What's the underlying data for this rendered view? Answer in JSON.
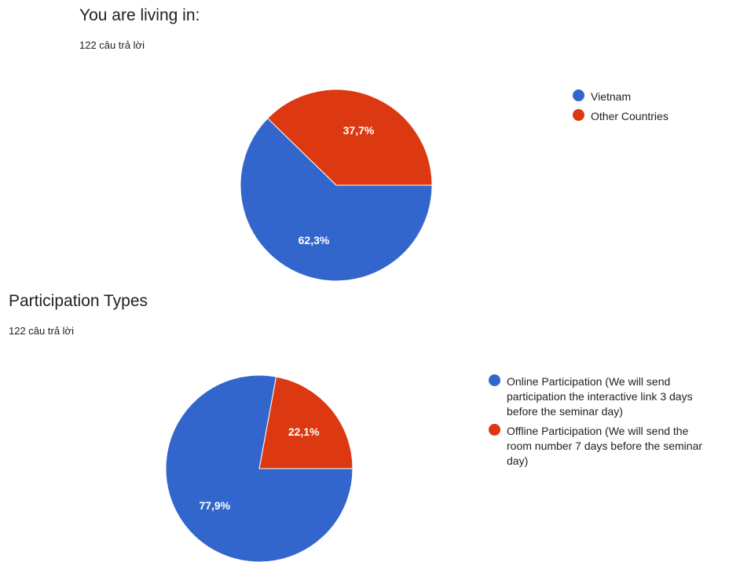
{
  "chart_data": [
    {
      "type": "pie",
      "title": "You are living in:",
      "subtitle": "122 câu trả lời",
      "slices": [
        {
          "label": "Vietnam",
          "value": 62.3,
          "value_label": "62,3%",
          "color": "#3366cc"
        },
        {
          "label": "Other Countries",
          "value": 37.7,
          "value_label": "37,7%",
          "color": "#dc3912"
        }
      ],
      "legend_position": "right"
    },
    {
      "type": "pie",
      "title": "Participation Types",
      "subtitle": "122 câu trả lời",
      "slices": [
        {
          "label": "Online Participation (We will send participation the interactive link 3 days before the seminar day)",
          "value": 77.9,
          "value_label": "77,9%",
          "color": "#3366cc"
        },
        {
          "label": "Offline Participation (We will send the room number 7 days before the seminar day)",
          "value": 22.1,
          "value_label": "22,1%",
          "color": "#dc3912"
        }
      ],
      "legend_position": "right"
    }
  ]
}
